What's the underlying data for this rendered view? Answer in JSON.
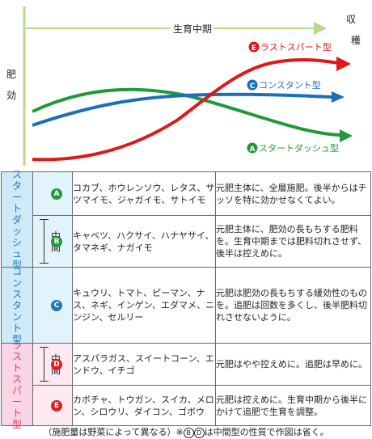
{
  "chart": {
    "y_label": [
      "肥",
      "効"
    ],
    "x_label": "生育中期",
    "harvest_label": [
      "収",
      "穫"
    ],
    "curves": [
      {
        "key": "E",
        "mark": "E",
        "name": "ラストスパート型",
        "color": "#e01818"
      },
      {
        "key": "C",
        "mark": "C",
        "name": "コンスタント型",
        "color": "#1a6fb8"
      },
      {
        "key": "A",
        "mark": "A",
        "name": "スタートダッシュ型",
        "color": "#1f9a3a"
      }
    ],
    "axis_color": "#b8d98a"
  },
  "groups": {
    "start": [
      "ス",
      "タ",
      "ー",
      "ト",
      "ダ",
      "ッ",
      "シ",
      "ュ",
      "型"
    ],
    "constant": [
      "コ",
      "ン",
      "ス",
      "タ",
      "ン",
      "ト",
      "型"
    ],
    "last": [
      "ラ",
      "ス",
      "ト",
      "ス",
      "パ",
      "ー",
      "ト",
      "型"
    ],
    "middle": [
      "中",
      "間"
    ]
  },
  "rows": [
    {
      "mark": "A",
      "crops": "コカブ、ホウレンソウ、レタス、サツマイモ、ジャガイモ、サトイモ",
      "desc": "元肥主体に、全層施肥。後半からはチッソを特に効かせなくてよい。"
    },
    {
      "mark": "B",
      "crops": "キャベツ、ハクサイ、ハナヤサイ、タマネギ、ナガイモ",
      "desc": "元肥主体に、肥効の長もちする肥料を。生育中期までは肥料切れさせず、後半は控えめに。"
    },
    {
      "mark": "C",
      "crops": "キュウリ、トマト、ピーマン、ナス、ネギ、インゲン、エダマメ、ニンジン、セルリー",
      "desc": "元肥は肥効の長もちする緩効性のものを。追肥は回数を多くし、後半肥料切れさせないように。"
    },
    {
      "mark": "D",
      "crops": "アスパラガス、スイートコーン、エンドウ、イチゴ",
      "desc": "元肥はやや控えめに。追肥は早めに。"
    },
    {
      "mark": "E",
      "crops": "カボチャ、トウガン、スイカ、メロン、シロウリ、ダイコン、ゴボウ",
      "desc": "元肥は控えめに。生育中期から後半にかけて追肥で生育を調整。"
    }
  ],
  "footer": {
    "part1": "（施肥量は野菜によって異なる）※",
    "b": "B",
    "d": "D",
    "part2": "は中間型の性質で作図は省く。"
  }
}
